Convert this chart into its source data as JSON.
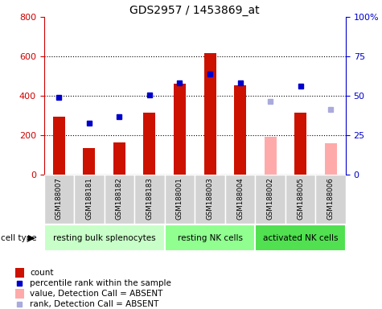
{
  "title": "GDS2957 / 1453869_at",
  "samples": [
    "GSM188007",
    "GSM188181",
    "GSM188182",
    "GSM188183",
    "GSM188001",
    "GSM188003",
    "GSM188004",
    "GSM188002",
    "GSM188005",
    "GSM188006"
  ],
  "count_values": [
    295,
    135,
    165,
    315,
    460,
    615,
    455,
    null,
    315,
    null
  ],
  "count_absent": [
    null,
    null,
    null,
    null,
    null,
    null,
    null,
    190,
    null,
    160
  ],
  "rank_values": [
    390,
    260,
    295,
    405,
    465,
    510,
    465,
    null,
    450,
    null
  ],
  "rank_absent": [
    null,
    null,
    null,
    null,
    null,
    null,
    null,
    370,
    null,
    330
  ],
  "groups": [
    {
      "label": "resting bulk splenocytes",
      "start": 0,
      "end": 4,
      "color": "#c8ffc8"
    },
    {
      "label": "resting NK cells",
      "start": 4,
      "end": 7,
      "color": "#90ff90"
    },
    {
      "label": "activated NK cells",
      "start": 7,
      "end": 10,
      "color": "#50e050"
    }
  ],
  "left_ylim": [
    0,
    800
  ],
  "left_yticks": [
    0,
    200,
    400,
    600,
    800
  ],
  "right_ylim": [
    0,
    100
  ],
  "right_yticks": [
    0,
    25,
    50,
    75,
    100
  ],
  "left_axis_color": "#cc0000",
  "right_axis_color": "#0000cc",
  "bar_color_present": "#cc1100",
  "bar_color_absent": "#ffaaaa",
  "dot_color_present": "#0000cc",
  "dot_color_absent": "#aaaadd",
  "bg_color": "#ffffff"
}
